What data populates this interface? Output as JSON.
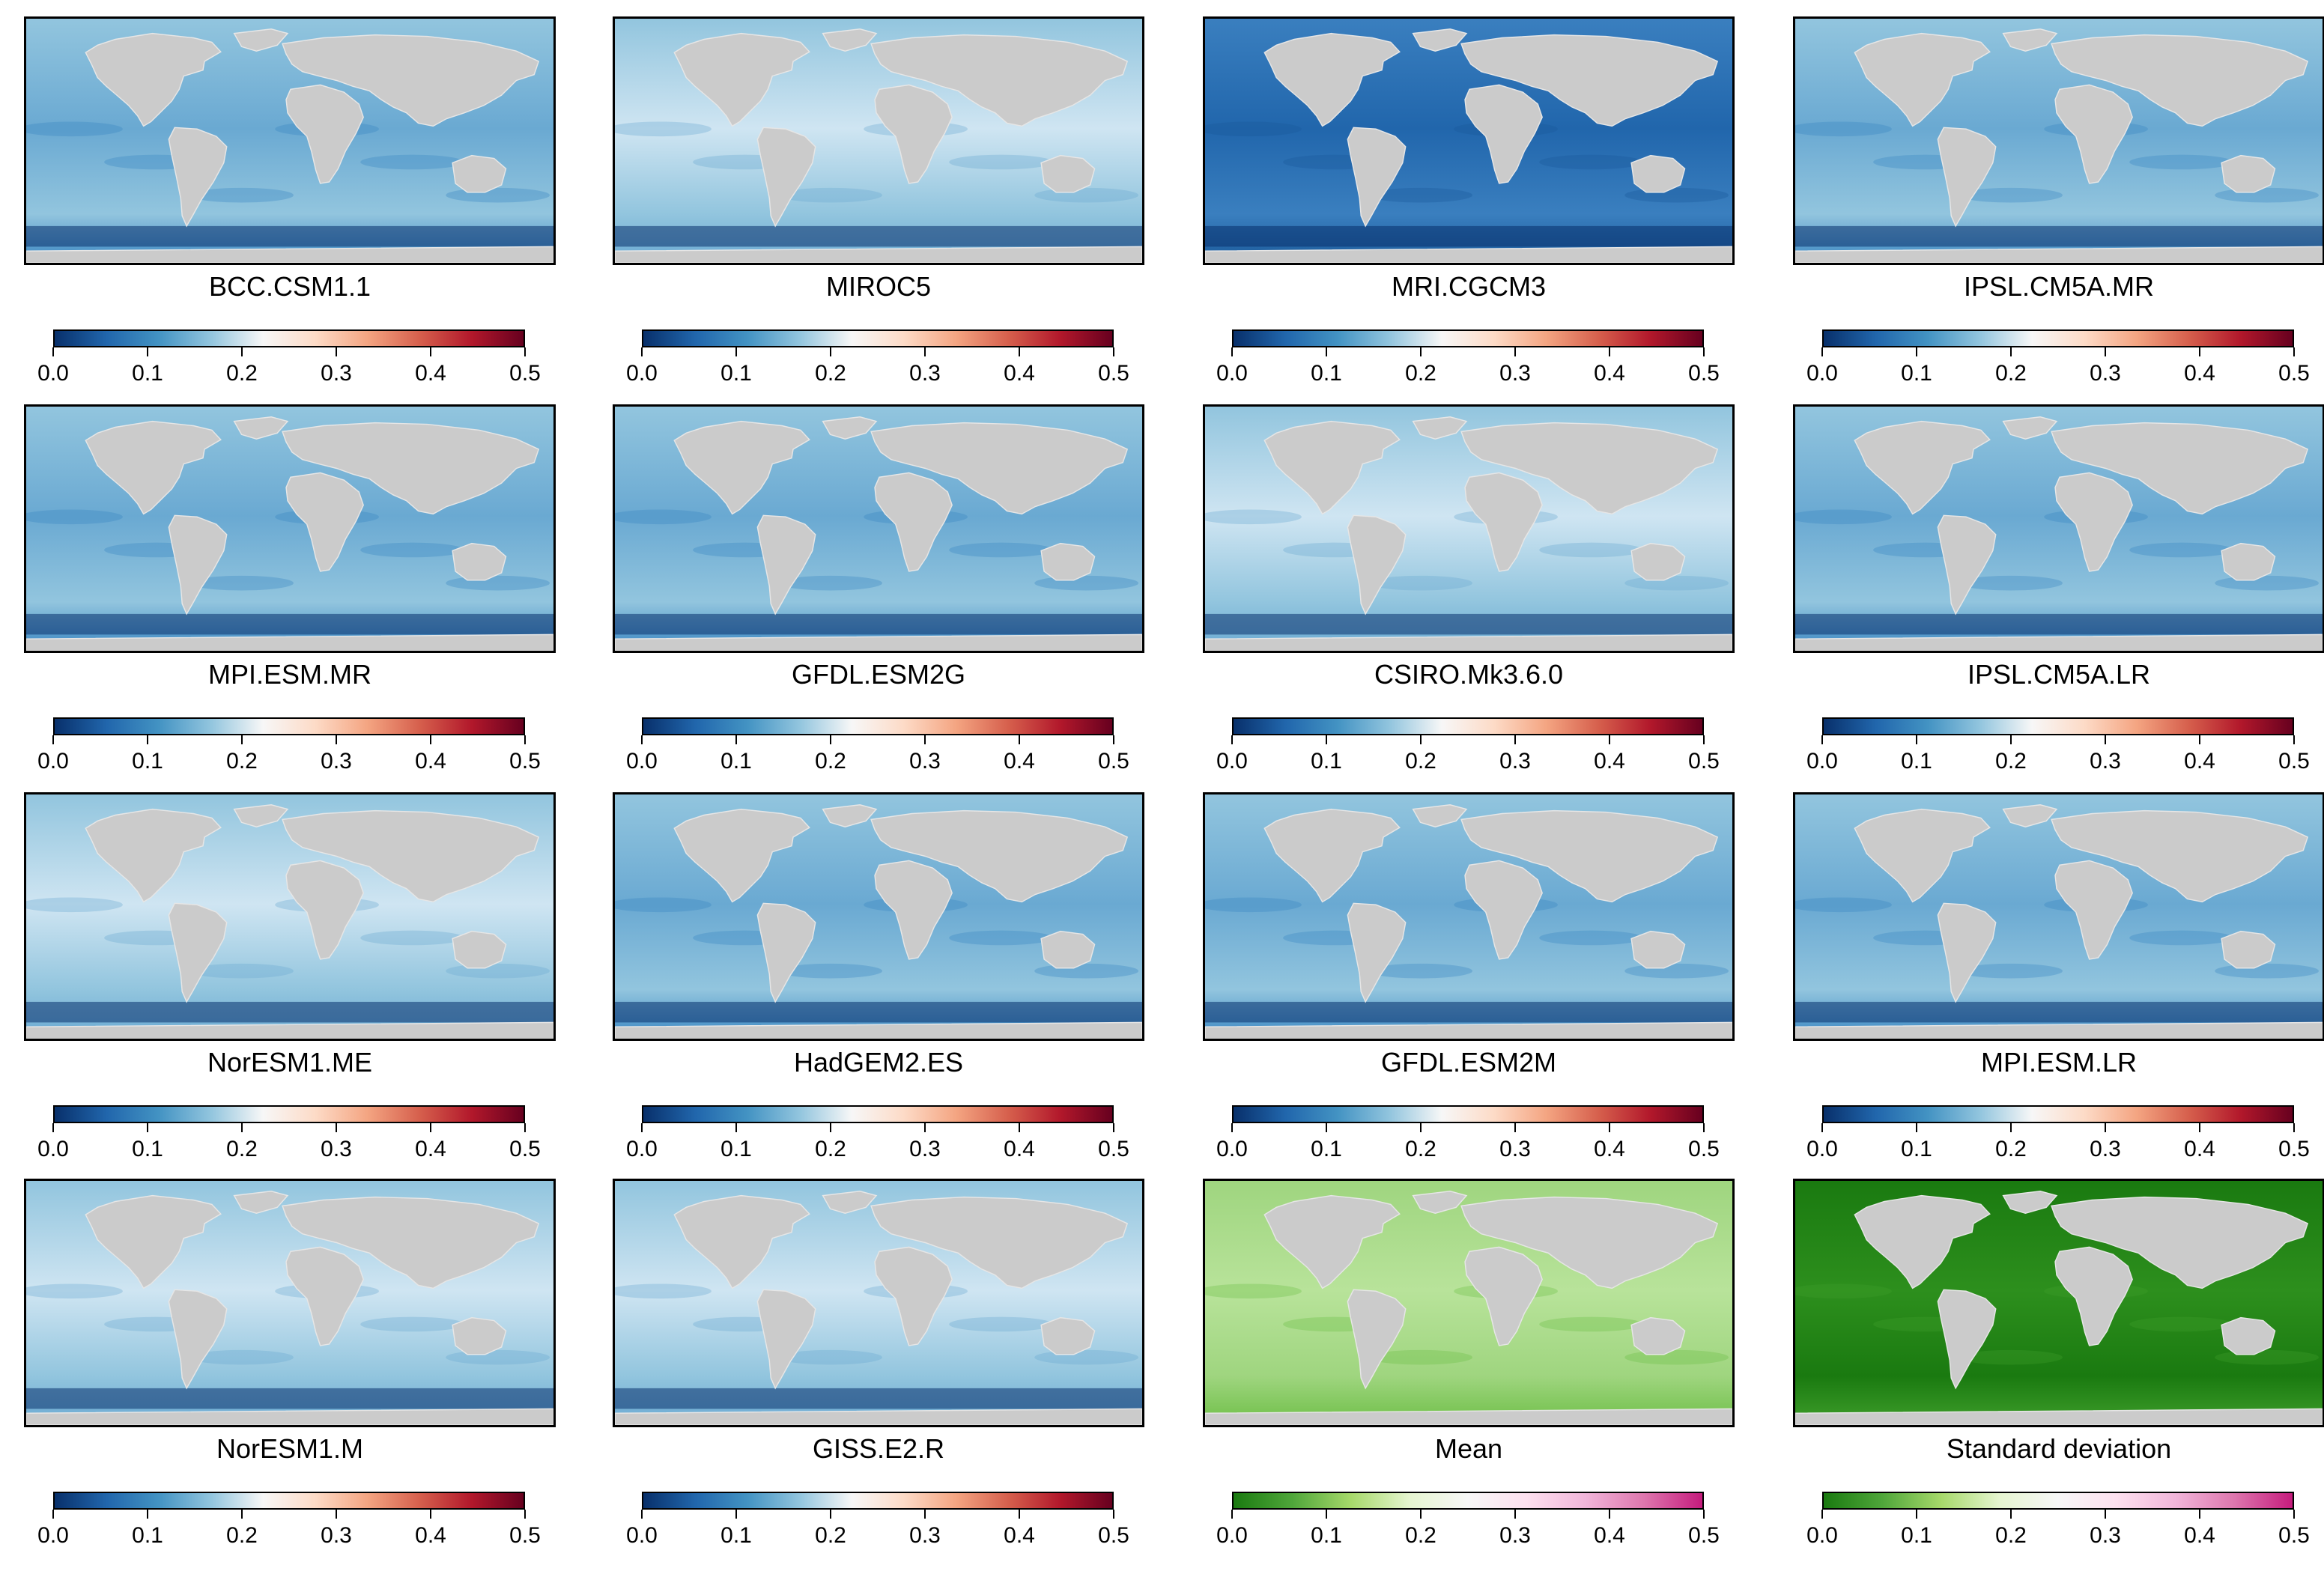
{
  "figure": {
    "description_none": "",
    "panels": [
      {
        "title": "BCC.CSM1.1",
        "scheme": "blue-red",
        "background": "blue",
        "contour": "yes"
      },
      {
        "title": "MIROC5",
        "scheme": "blue-red",
        "background": "light",
        "contour": "yes"
      },
      {
        "title": "MRI.CGCM3",
        "scheme": "blue-red",
        "background": "deep",
        "contour": "yes"
      },
      {
        "title": "IPSL.CM5A.MR",
        "scheme": "blue-red",
        "background": "blue",
        "contour": "yes"
      },
      {
        "title": "MPI.ESM.MR",
        "scheme": "blue-red",
        "background": "blue",
        "contour": "yes"
      },
      {
        "title": "GFDL.ESM2G",
        "scheme": "blue-red",
        "background": "blue",
        "contour": "yes"
      },
      {
        "title": "CSIRO.Mk3.6.0",
        "scheme": "blue-red",
        "background": "light",
        "contour": "yes"
      },
      {
        "title": "IPSL.CM5A.LR",
        "scheme": "blue-red",
        "background": "blue",
        "contour": "yes"
      },
      {
        "title": "NorESM1.ME",
        "scheme": "blue-red",
        "background": "light",
        "contour": "yes"
      },
      {
        "title": "HadGEM2.ES",
        "scheme": "blue-red",
        "background": "blue",
        "contour": "yes"
      },
      {
        "title": "GFDL.ESM2M",
        "scheme": "blue-red",
        "background": "blue",
        "contour": "yes"
      },
      {
        "title": "MPI.ESM.LR",
        "scheme": "blue-red",
        "background": "blue",
        "contour": "yes"
      },
      {
        "title": "NorESM1.M",
        "scheme": "blue-red",
        "background": "light",
        "contour": "yes"
      },
      {
        "title": "GISS.E2.R",
        "scheme": "blue-red",
        "background": "light",
        "contour": "yes"
      },
      {
        "title": "Mean",
        "scheme": "green-pink",
        "background": "lightgreen",
        "contour": "no"
      },
      {
        "title": "Standard deviation",
        "scheme": "green-pink",
        "background": "darkgreen",
        "contour": "no"
      }
    ]
  },
  "colors": {
    "land": "#cbcbcb",
    "blue_red_scale": [
      "#08306b",
      "#2166ac",
      "#4393c3",
      "#92c5de",
      "#f7f7f7",
      "#fddbc7",
      "#f4a582",
      "#d6604d",
      "#b2182b",
      "#67001f"
    ],
    "green_pink_scale": [
      "#1a7a10",
      "#4fa63a",
      "#a6d96a",
      "#e6f5d0",
      "#f7f7f7",
      "#fde0ef",
      "#f1b6da",
      "#de77ae",
      "#c51b7d"
    ]
  },
  "chart_data": {
    "type": "heatmap",
    "colorbar": {
      "range": [
        0.0,
        0.5
      ],
      "tick_labels": [
        "0.0",
        "0.1",
        "0.2",
        "0.3",
        "0.4",
        "0.5"
      ],
      "tick_values": [
        0.0,
        0.1,
        0.2,
        0.3,
        0.4,
        0.5
      ]
    }
  }
}
